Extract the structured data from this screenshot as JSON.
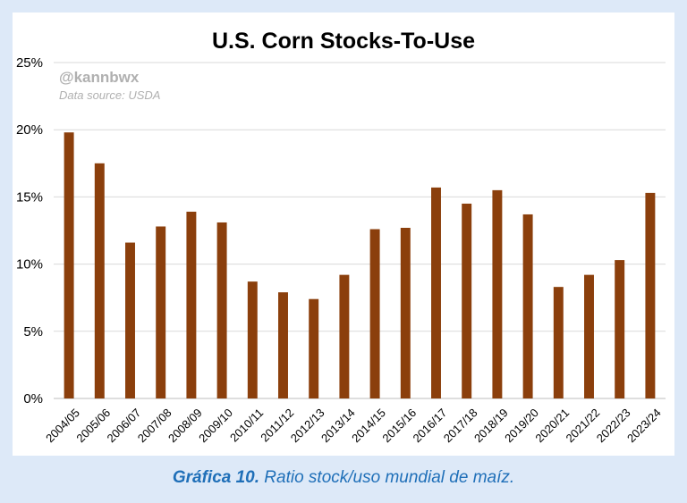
{
  "chart_data": {
    "type": "bar",
    "title": "U.S. Corn Stocks-To-Use",
    "watermark": "@kannbwx",
    "source_note": "Data source: USDA",
    "xlabel": "",
    "ylabel": "",
    "ylim": [
      0,
      25
    ],
    "yticks": [
      "0%",
      "5%",
      "10%",
      "15%",
      "20%",
      "25%"
    ],
    "ytick_values": [
      0,
      5,
      10,
      15,
      20,
      25
    ],
    "grid": true,
    "legend": "none",
    "bar_color": "#8b3f0c",
    "categories": [
      "2004/05",
      "2005/06",
      "2006/07",
      "2007/08",
      "2008/09",
      "2009/10",
      "2010/11",
      "2011/12",
      "2012/13",
      "2013/14",
      "2014/15",
      "2015/16",
      "2016/17",
      "2017/18",
      "2018/19",
      "2019/20",
      "2020/21",
      "2021/22",
      "2022/23",
      "2023/24"
    ],
    "values": [
      19.8,
      17.5,
      11.6,
      12.8,
      13.9,
      13.1,
      8.7,
      7.9,
      7.4,
      9.2,
      12.6,
      12.7,
      15.7,
      14.5,
      15.5,
      13.7,
      8.3,
      9.2,
      10.3,
      15.3
    ]
  },
  "caption": {
    "label": "Gráfica 10.",
    "text": "Ratio stock/uso mundial de maíz."
  }
}
